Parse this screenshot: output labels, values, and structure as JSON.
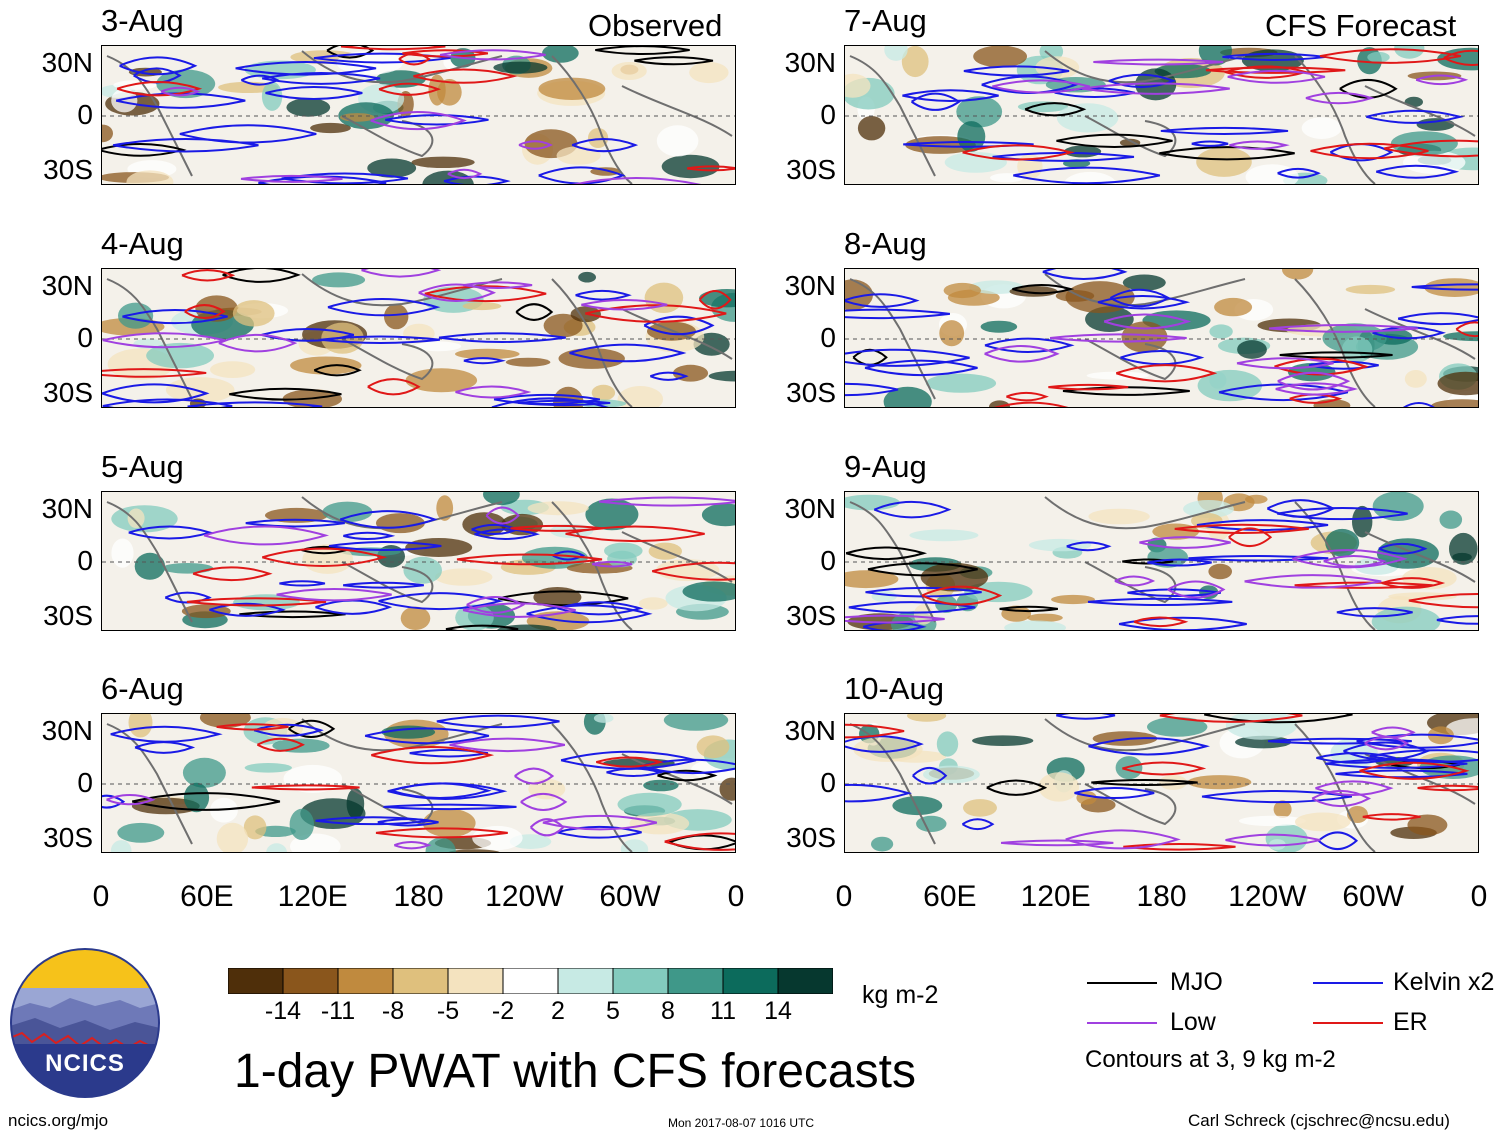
{
  "header": {
    "observed_label": "Observed",
    "forecast_label": "CFS Forecast"
  },
  "panels": {
    "observed": [
      {
        "date": "3-Aug"
      },
      {
        "date": "4-Aug"
      },
      {
        "date": "5-Aug"
      },
      {
        "date": "6-Aug"
      }
    ],
    "forecast": [
      {
        "date": "7-Aug"
      },
      {
        "date": "8-Aug"
      },
      {
        "date": "9-Aug"
      },
      {
        "date": "10-Aug"
      }
    ]
  },
  "axes": {
    "lat_labels": [
      "30N",
      "0",
      "30S"
    ],
    "lon_labels": [
      "0",
      "60E",
      "120E",
      "180",
      "120W",
      "60W",
      "0"
    ]
  },
  "colorbar": {
    "colors": [
      "#4f2f0a",
      "#8a561c",
      "#c08a3e",
      "#dfc07d",
      "#f4e3bf",
      "#ffffff",
      "#c7eae4",
      "#83cbbe",
      "#3f9889",
      "#0c6b5c",
      "#06382f"
    ],
    "tick_labels": [
      "-14",
      "-11",
      "-8",
      "-5",
      "-2",
      "2",
      "5",
      "8",
      "11",
      "14"
    ],
    "units": "kg m-2"
  },
  "legend": {
    "items": [
      {
        "label": "MJO",
        "color": "#000000"
      },
      {
        "label": "Kelvin x2",
        "color": "#1a1ae6"
      },
      {
        "label": "Low",
        "color": "#a040e0"
      },
      {
        "label": "ER",
        "color": "#e01818"
      }
    ],
    "note": "Contours at 3, 9 kg m-2"
  },
  "logo": {
    "text": "NCICS"
  },
  "title": "1-day PWAT with CFS forecasts",
  "footer": {
    "url": "ncics.org/mjo",
    "timestamp": "Mon 2017-08-07 1016 UTC",
    "credit": "Carl Schreck (cjschrec@ncsu.edu)"
  }
}
